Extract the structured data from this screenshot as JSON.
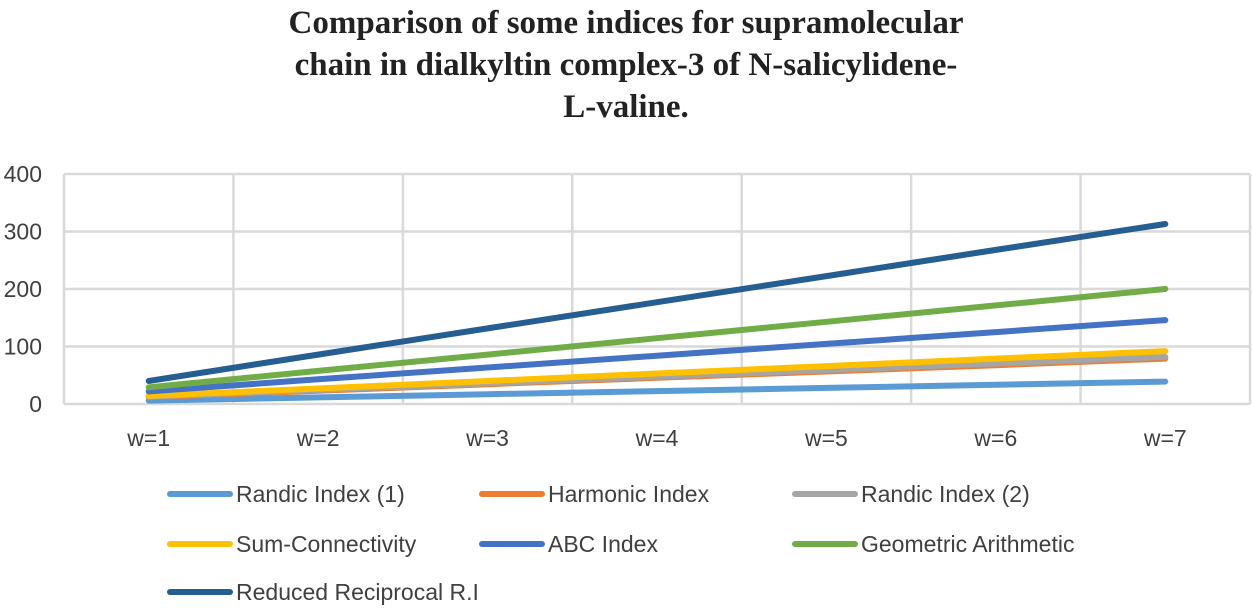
{
  "chart_data": {
    "type": "line",
    "title_lines": [
      "Comparison of some indices for supramolecular",
      "chain in dialkyltin complex-3 of N-salicylidene-",
      "L-valine."
    ],
    "categories": [
      "w=1",
      "w=2",
      "w=3",
      "w=4",
      "w=5",
      "w=6",
      "w=7"
    ],
    "ylim": [
      0,
      400
    ],
    "yticks": [
      0,
      100,
      200,
      300,
      400
    ],
    "grid": true,
    "legend_position": "bottom",
    "series": [
      {
        "name": "Randic Index (1)",
        "color": "#5b9bd5",
        "values": [
          6,
          11.5,
          17,
          22.5,
          28,
          33.5,
          39
        ]
      },
      {
        "name": "Harmonic Index",
        "color": "#ed7d31",
        "values": [
          12,
          23,
          34.5,
          45.5,
          56.5,
          67.5,
          79
        ]
      },
      {
        "name": "Randic Index (2)",
        "color": "#a5a5a5",
        "values": [
          13,
          24.5,
          36,
          47.5,
          59,
          70.5,
          82
        ]
      },
      {
        "name": "Sum-Connectivity",
        "color": "#ffc000",
        "values": [
          14,
          27,
          40,
          53,
          66,
          79,
          92
        ]
      },
      {
        "name": "ABC Index",
        "color": "#4472c4",
        "values": [
          22,
          43,
          63.5,
          84,
          104.5,
          125,
          146
        ]
      },
      {
        "name": "Geometric Arithmetic",
        "color": "#70ad47",
        "values": [
          29,
          57.5,
          86,
          114.5,
          143,
          171.5,
          200
        ]
      },
      {
        "name": "Reduced Reciprocal R.I",
        "color": "#255e91",
        "values": [
          40,
          86,
          131.5,
          177,
          222.5,
          268,
          313
        ]
      }
    ]
  }
}
